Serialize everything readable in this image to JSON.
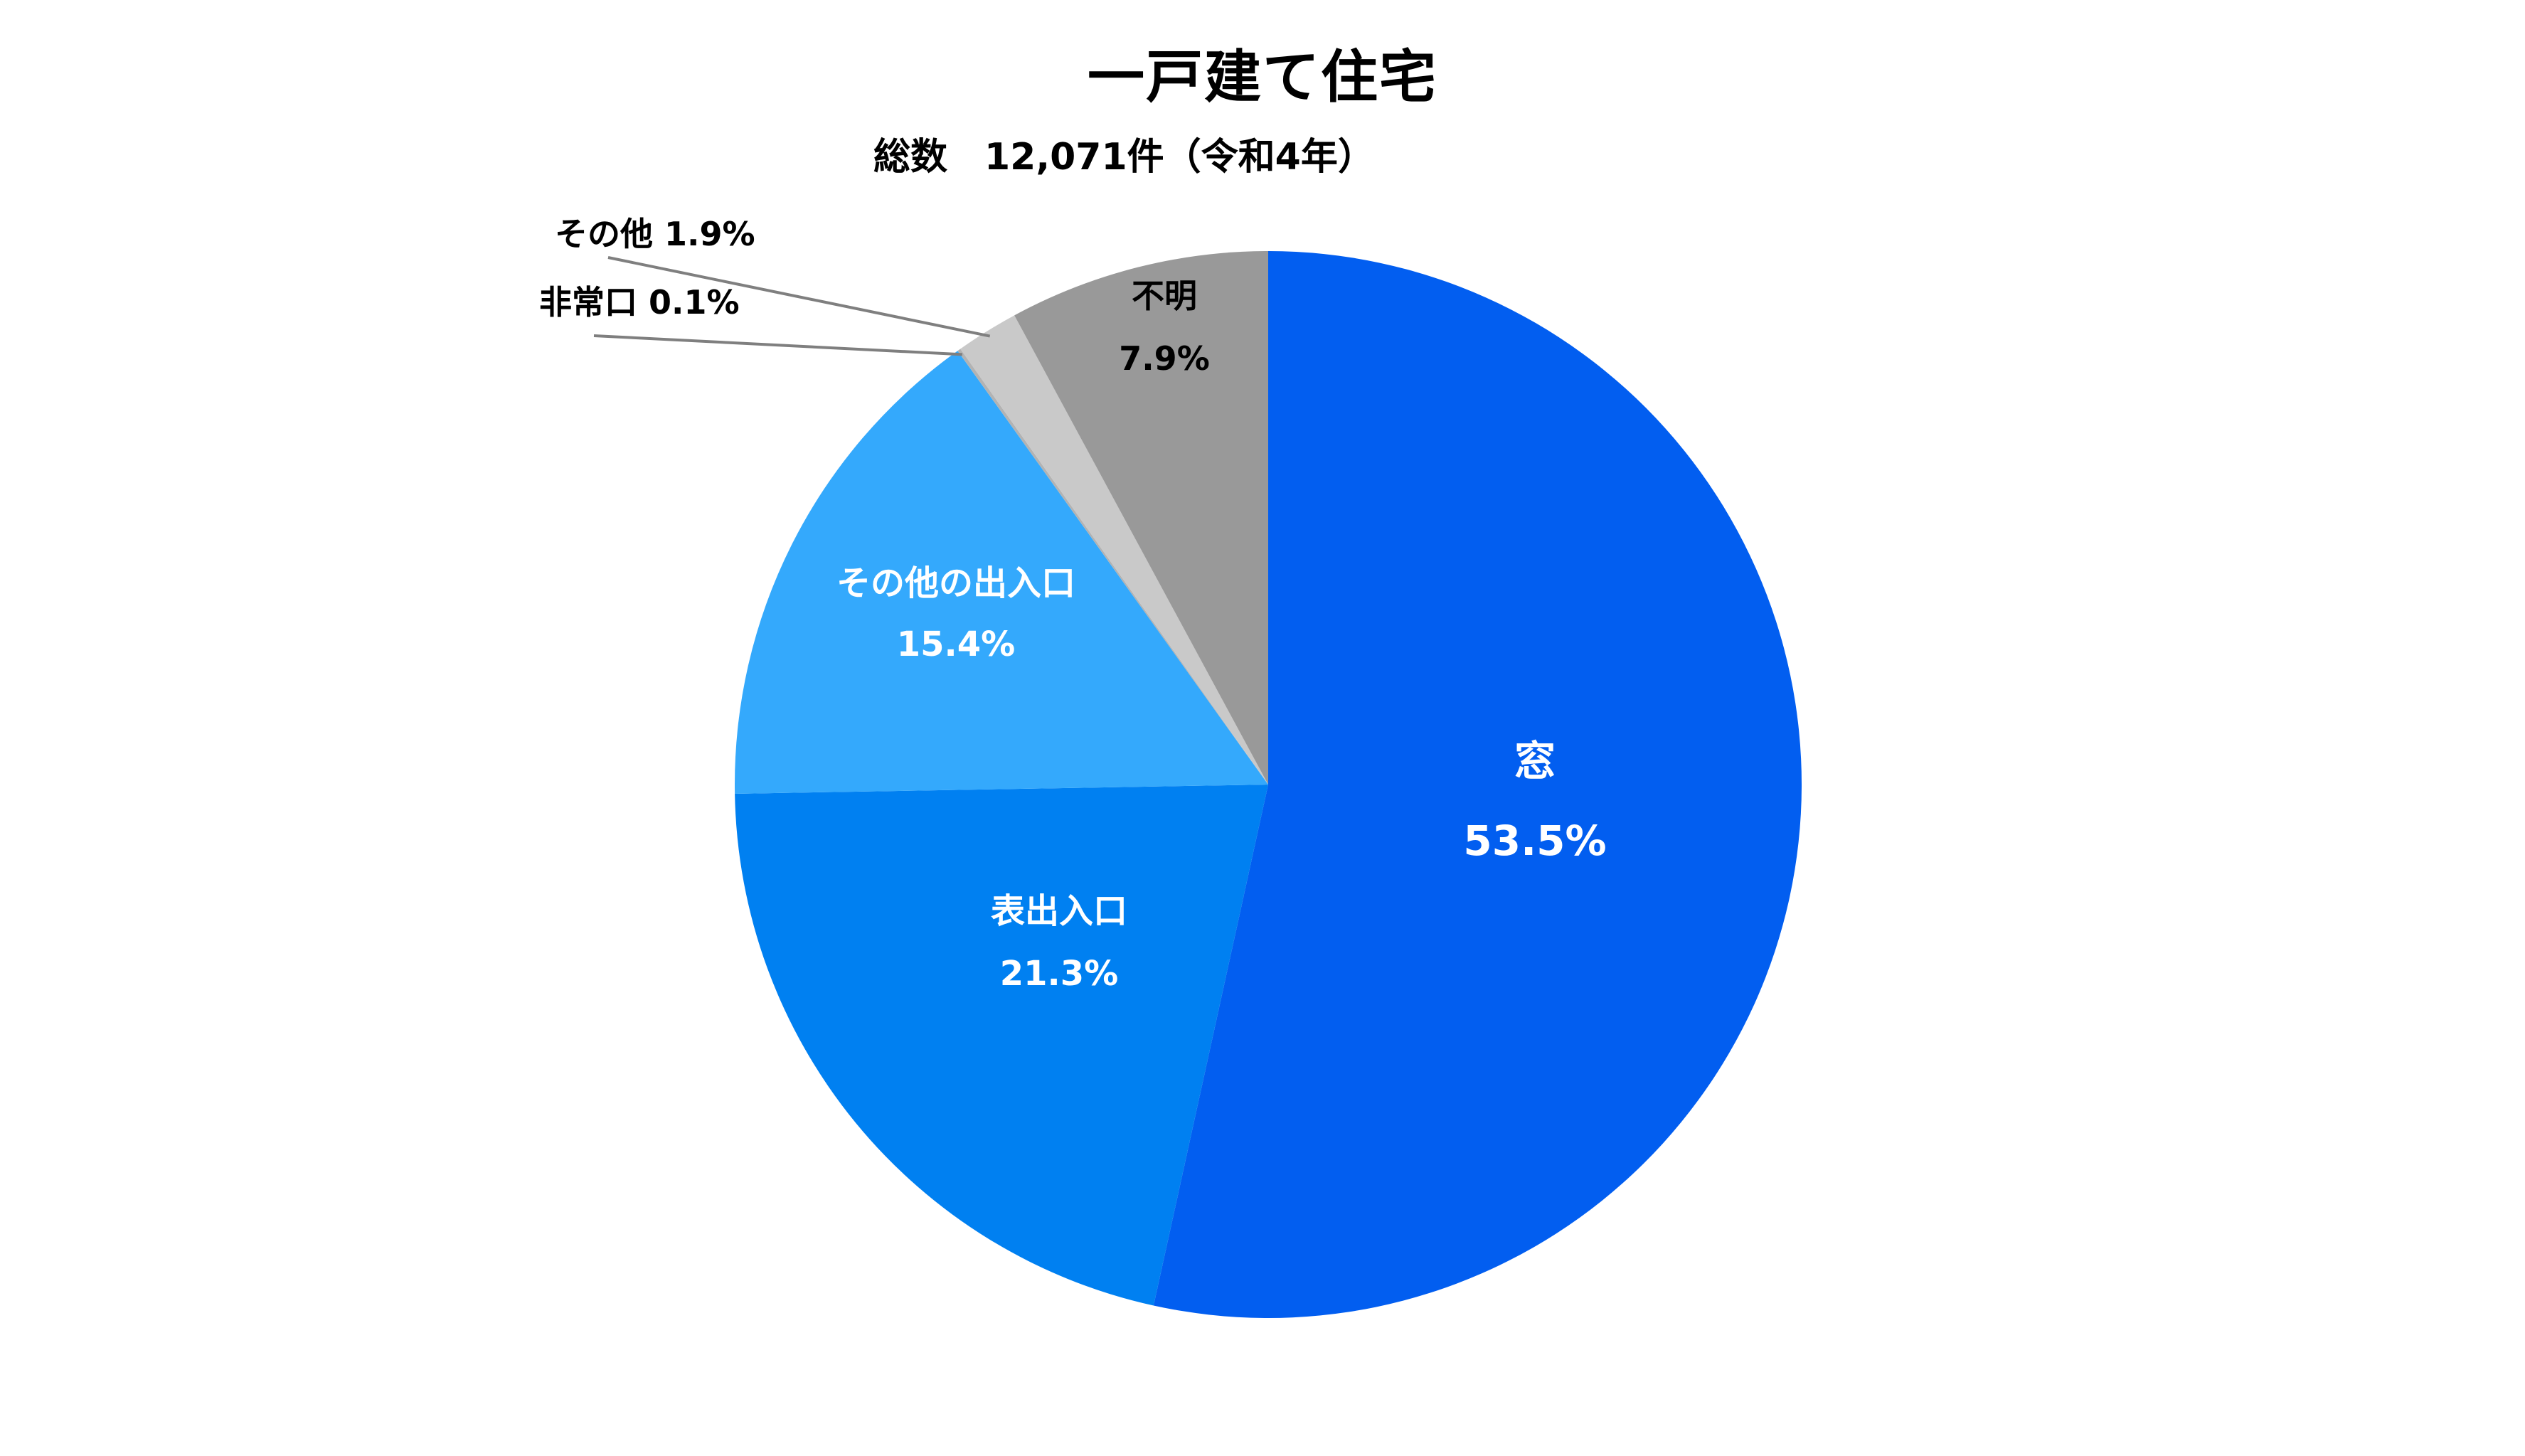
{
  "chart_data": {
    "type": "pie",
    "title": "一戸建て住宅",
    "subtitle": "総数　12,071件（令和4年）",
    "unit": "%",
    "start": "12 o'clock",
    "direction": "clockwise",
    "slices": [
      {
        "label": "窓",
        "value": 53.5,
        "value_label": "53.5%",
        "color": "#025ef0",
        "text_color": "#ffffff",
        "label_position": "inside"
      },
      {
        "label": "表出入口",
        "value": 21.3,
        "value_label": "21.3%",
        "color": "#0080f1",
        "text_color": "#ffffff",
        "label_position": "inside"
      },
      {
        "label": "その他の出入口",
        "value": 15.4,
        "value_label": "15.4%",
        "color": "#34a9fc",
        "text_color": "#ffffff",
        "label_position": "inside"
      },
      {
        "label": "非常口",
        "value": 0.1,
        "value_label": "0.1%",
        "color": "#b3b3b3",
        "text_color": "#000000",
        "label_position": "outside"
      },
      {
        "label": "その他",
        "value": 1.9,
        "value_label": "1.9%",
        "color": "#c9c9c9",
        "text_color": "#000000",
        "label_position": "outside"
      },
      {
        "label": "不明",
        "value": 7.9,
        "value_label": "7.9%",
        "color": "#999999",
        "text_color": "#000000",
        "label_position": "inside"
      }
    ]
  }
}
